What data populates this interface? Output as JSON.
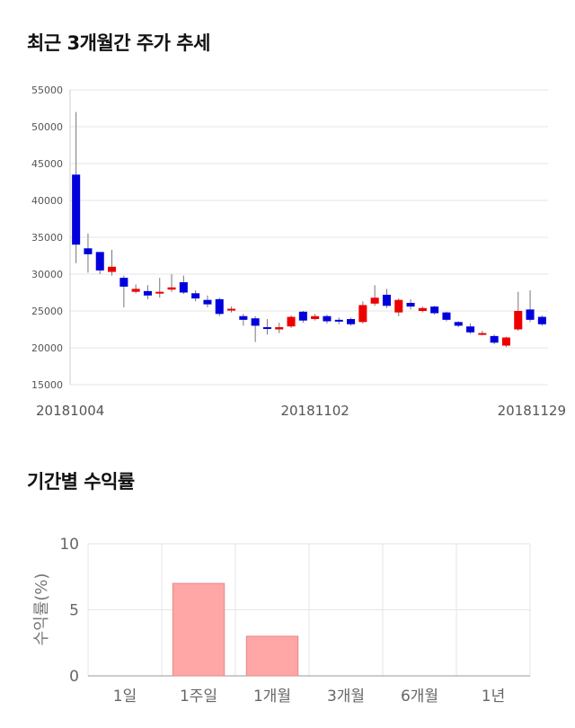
{
  "titles": {
    "price_trend": "최근 3개월간 주가 추세",
    "returns": "기간별 수익률"
  },
  "colors": {
    "up": "#ee0000",
    "down": "#0000dd",
    "bar": "#ffa6a6",
    "bar_border": "#e08a8a",
    "grid": "#e6e6e6"
  },
  "chart_data": [
    {
      "type": "candlestick",
      "ylim": [
        15000,
        55000
      ],
      "yticks": [
        "15000",
        "20000",
        "25000",
        "30000",
        "35000",
        "40000",
        "45000",
        "50000",
        "55000"
      ],
      "x_tick_labels": [
        "20181004",
        "20181102",
        "20181129"
      ],
      "x_tick_index": [
        0,
        20,
        38
      ],
      "grid": true,
      "candles": [
        {
          "o": 43500,
          "c": 34000,
          "h": 52000,
          "l": 31500
        },
        {
          "o": 33500,
          "c": 32700,
          "h": 35500,
          "l": 30200
        },
        {
          "o": 33000,
          "c": 30500,
          "h": 33000,
          "l": 30000
        },
        {
          "o": 30300,
          "c": 31000,
          "h": 33300,
          "l": 29800
        },
        {
          "o": 29500,
          "c": 28300,
          "h": 29800,
          "l": 25500
        },
        {
          "o": 27600,
          "c": 28000,
          "h": 28600,
          "l": 27400
        },
        {
          "o": 27700,
          "c": 27100,
          "h": 28500,
          "l": 26600
        },
        {
          "o": 27400,
          "c": 27600,
          "h": 29500,
          "l": 26800
        },
        {
          "o": 27900,
          "c": 28200,
          "h": 30000,
          "l": 27600
        },
        {
          "o": 28900,
          "c": 27500,
          "h": 29800,
          "l": 27300
        },
        {
          "o": 27400,
          "c": 26700,
          "h": 27800,
          "l": 26300
        },
        {
          "o": 26500,
          "c": 25900,
          "h": 27100,
          "l": 25500
        },
        {
          "o": 26600,
          "c": 24600,
          "h": 26800,
          "l": 24300
        },
        {
          "o": 25100,
          "c": 25300,
          "h": 25600,
          "l": 24800
        },
        {
          "o": 24300,
          "c": 23800,
          "h": 24600,
          "l": 23000
        },
        {
          "o": 24000,
          "c": 23000,
          "h": 24300,
          "l": 20800
        },
        {
          "o": 22800,
          "c": 22700,
          "h": 23900,
          "l": 21800
        },
        {
          "o": 22500,
          "c": 22800,
          "h": 23400,
          "l": 22000
        },
        {
          "o": 22900,
          "c": 24200,
          "h": 24400,
          "l": 22700
        },
        {
          "o": 24900,
          "c": 23700,
          "h": 25000,
          "l": 23400
        },
        {
          "o": 23900,
          "c": 24300,
          "h": 24600,
          "l": 23700
        },
        {
          "o": 24300,
          "c": 23600,
          "h": 24500,
          "l": 23300
        },
        {
          "o": 23800,
          "c": 23700,
          "h": 24100,
          "l": 23200
        },
        {
          "o": 23900,
          "c": 23200,
          "h": 24100,
          "l": 23000
        },
        {
          "o": 23500,
          "c": 25800,
          "h": 26300,
          "l": 23300
        },
        {
          "o": 26000,
          "c": 26800,
          "h": 28500,
          "l": 25700
        },
        {
          "o": 27200,
          "c": 25700,
          "h": 28000,
          "l": 25400
        },
        {
          "o": 24800,
          "c": 26500,
          "h": 26700,
          "l": 24300
        },
        {
          "o": 26100,
          "c": 25600,
          "h": 26600,
          "l": 25200
        },
        {
          "o": 25000,
          "c": 25400,
          "h": 25600,
          "l": 24800
        },
        {
          "o": 25600,
          "c": 24700,
          "h": 25700,
          "l": 24500
        },
        {
          "o": 24800,
          "c": 23800,
          "h": 24900,
          "l": 23600
        },
        {
          "o": 23500,
          "c": 23000,
          "h": 23600,
          "l": 22800
        },
        {
          "o": 22900,
          "c": 22100,
          "h": 23300,
          "l": 21900
        },
        {
          "o": 21900,
          "c": 22000,
          "h": 22300,
          "l": 21700
        },
        {
          "o": 21600,
          "c": 20700,
          "h": 21800,
          "l": 20500
        },
        {
          "o": 20300,
          "c": 21400,
          "h": 21500,
          "l": 20100
        },
        {
          "o": 22500,
          "c": 25000,
          "h": 27600,
          "l": 22300
        },
        {
          "o": 25200,
          "c": 23800,
          "h": 27800,
          "l": 23500
        },
        {
          "o": 24200,
          "c": 23200,
          "h": 24400,
          "l": 23000
        }
      ]
    },
    {
      "type": "bar",
      "ylabel": "수익률(%)",
      "ylim": [
        0,
        10
      ],
      "yticks": [
        "0",
        "5",
        "10"
      ],
      "categories": [
        "1일",
        "1주일",
        "1개월",
        "3개월",
        "6개월",
        "1년"
      ],
      "values": [
        0,
        7.0,
        3.0,
        0,
        0,
        0
      ],
      "grid": true
    }
  ]
}
